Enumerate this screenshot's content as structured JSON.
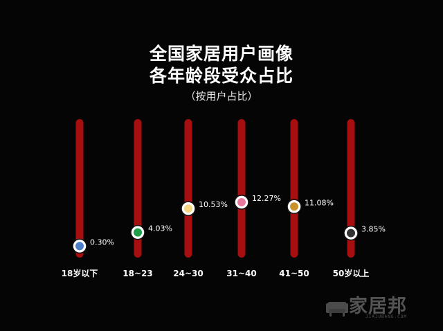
{
  "header": {
    "title_line1": "全国家居用户画像",
    "title_line2": "各年龄段受众占比",
    "subtitle": "（按用户占比）"
  },
  "watermark": {
    "brand": "家居邦",
    "url": "JIAJUBANG.COM"
  },
  "colors": {
    "background": "#050505",
    "bar": "#a70e0f",
    "ring": "#ffffff"
  },
  "chart_data": {
    "type": "scatter",
    "title": "全国家居用户画像 各年龄段受众占比",
    "subtitle": "（按用户占比）",
    "categories": [
      "18岁以下",
      "18~23",
      "24~30",
      "31~40",
      "41~50",
      "50岁以上"
    ],
    "values": [
      0.3,
      4.03,
      10.53,
      12.27,
      11.08,
      3.85
    ],
    "value_labels": [
      "0.30%",
      "4.03%",
      "10.53%",
      "12.27%",
      "11.08%",
      "3.85%"
    ],
    "dot_colors": [
      "#4d7fc9",
      "#1f9e4a",
      "#f5d784",
      "#e7789e",
      "#c9922c",
      "#333333"
    ],
    "ylim": [
      0,
      18
    ],
    "grid": false,
    "legend": "none"
  }
}
